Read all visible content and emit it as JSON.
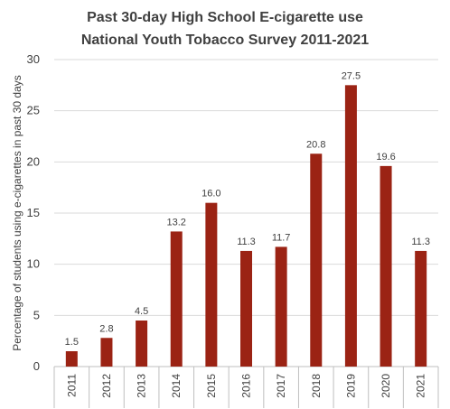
{
  "chart_data": {
    "type": "bar",
    "title": "Past 30-day High School E-cigarette use",
    "subtitle": "National Youth Tobacco Survey  2011-2021",
    "xlabel": "",
    "ylabel": "Percentage of students using e-cigarettes in past 30 days",
    "categories": [
      "2011",
      "2012",
      "2013",
      "2014",
      "2015",
      "2016",
      "2017",
      "2018",
      "2019",
      "2020",
      "2021"
    ],
    "values": [
      1.5,
      2.8,
      4.5,
      13.2,
      16.0,
      11.3,
      11.7,
      20.8,
      27.5,
      19.6,
      11.3
    ],
    "value_labels": [
      "1.5",
      "2.8",
      "4.5",
      "13.2",
      "16.0",
      "11.3",
      "11.7",
      "20.8",
      "27.5",
      "19.6",
      "11.3"
    ],
    "ylim": [
      0,
      30
    ],
    "yticks": [
      0,
      5,
      10,
      15,
      20,
      25,
      30
    ],
    "grid": true,
    "bar_color": "#9b2314"
  }
}
